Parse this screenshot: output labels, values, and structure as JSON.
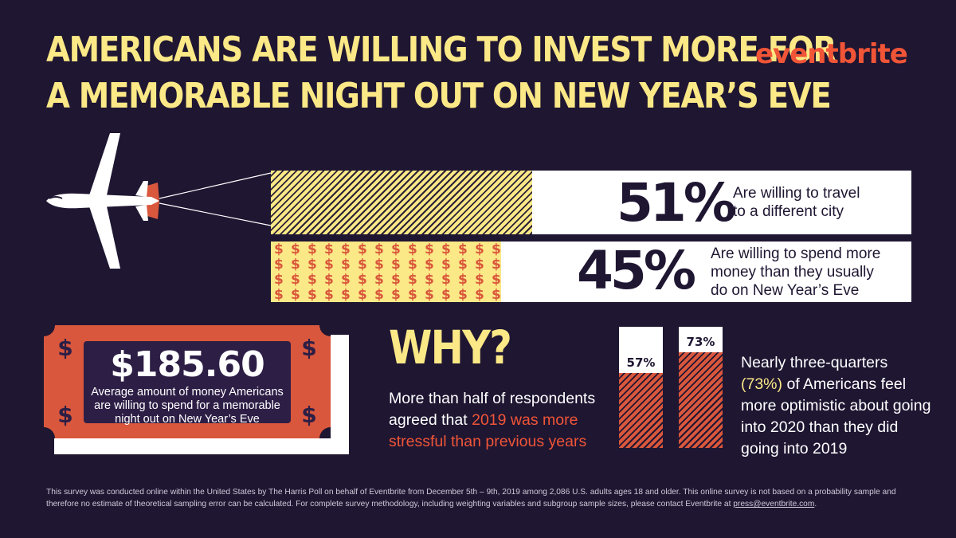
{
  "headline": {
    "line1": "AMERICANS ARE WILLING TO INVEST MORE FOR",
    "line2": "A MEMORABLE NIGHT OUT ON NEW YEAR’S EVE"
  },
  "logo": "eventbrite",
  "colors": {
    "background": "#1f1632",
    "yellow": "#fbe886",
    "orange": "#f05537",
    "red": "#d9573c",
    "white": "#ffffff"
  },
  "icons": [
    "airplane-icon",
    "dollar-sign-icon"
  ],
  "bars": [
    {
      "pct_label": "51%",
      "value": 51,
      "desc_line1": "Are willing to travel",
      "desc_line2": "to a different city",
      "desc_line3": ""
    },
    {
      "pct_label": "45%",
      "value": 45,
      "desc_line1": "Are willing to spend more",
      "desc_line2": "money than they usually",
      "desc_line3": "do on New Year’s Eve"
    }
  ],
  "bill": {
    "amount": "$185.60",
    "caption_line1": "Average amount of money Americans",
    "caption_line2": "are willing to spend for a memorable",
    "caption_line3": "night out on New Year’s Eve",
    "symbol": "$"
  },
  "why": {
    "title": "WHY?",
    "text_part1": "More than half of respondents agreed that ",
    "text_highlight": "2019 was more stressful than previous years"
  },
  "chart_data": {
    "type": "bar",
    "categories": [
      "2019 was more stressful than previous years",
      "More optimistic about going into 2020"
    ],
    "values": [
      57,
      73
    ],
    "value_labels": [
      "57%",
      "73%"
    ],
    "ylim": [
      0,
      100
    ]
  },
  "optimism": {
    "text_part1": "Nearly three-quarters ",
    "text_highlight": "(73%)",
    "text_part2": " of Americans feel more optimistic about going into 2020 than they did going into 2019"
  },
  "footnote": {
    "text": "This survey was conducted online within the United States by The Harris Poll on behalf of Eventbrite from December 5th – 9th, 2019 among 2,086 U.S. adults ages 18 and older. This online survey is not based on a probability sample and therefore no estimate of theoretical sampling error can be calculated. For complete survey methodology, including weighting variables and subgroup sample sizes, please contact Eventbrite at ",
    "email": "press@eventbrite.com",
    "end": "."
  }
}
